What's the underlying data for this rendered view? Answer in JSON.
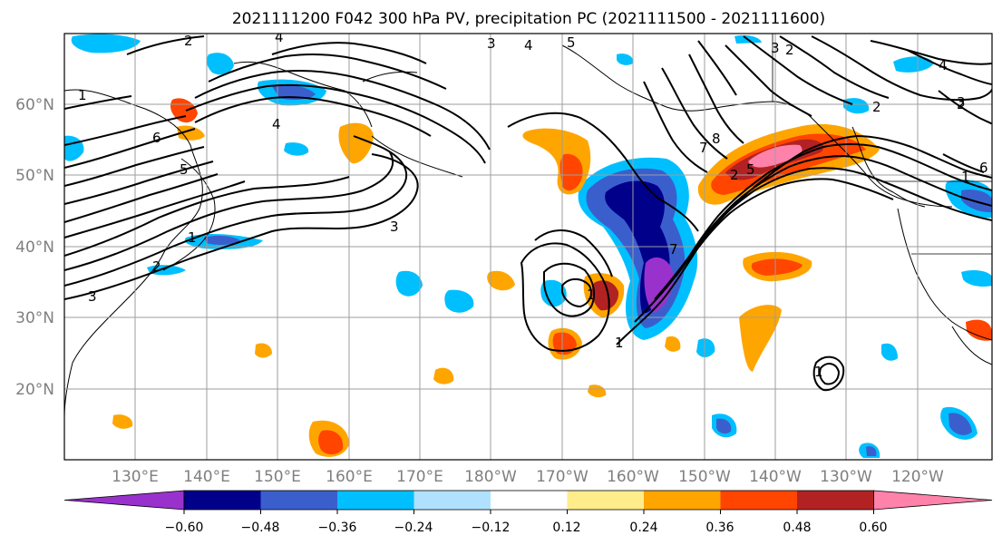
{
  "title": "2021111200 F042 300 hPa PV, precipitation PC (2021111500 - 2021111600)",
  "lat_labels": [
    "60°N",
    "50°N",
    "40°N",
    "30°N",
    "20°N"
  ],
  "lon_labels": [
    "130°E",
    "140°E",
    "150°E",
    "160°E",
    "170°E",
    "180°W",
    "170°W",
    "160°W",
    "150°W",
    "140°W",
    "130°W",
    "120°W"
  ],
  "colorbar": {
    "ticks": [
      "−0.60",
      "−0.48",
      "−0.36",
      "−0.24",
      "−0.12",
      "0.12",
      "0.24",
      "0.36",
      "0.48",
      "0.60"
    ],
    "colors": [
      "#9932cc",
      "#00008b",
      "#3a5fcd",
      "#00bfff",
      "#b0e2ff",
      "#ffffff",
      "#ffec8b",
      "#ffa500",
      "#ff4500",
      "#b22222",
      "#ff82ab"
    ]
  },
  "contour_labels": [
    "2",
    "4",
    "3",
    "4",
    "5",
    "3",
    "2",
    "2",
    "4",
    "1",
    "6",
    "5",
    "4",
    "3",
    "1",
    "2",
    "3",
    "1",
    "7",
    "8",
    "7",
    "2",
    "5",
    "1",
    "1",
    "2",
    "3",
    "6",
    "1"
  ]
}
